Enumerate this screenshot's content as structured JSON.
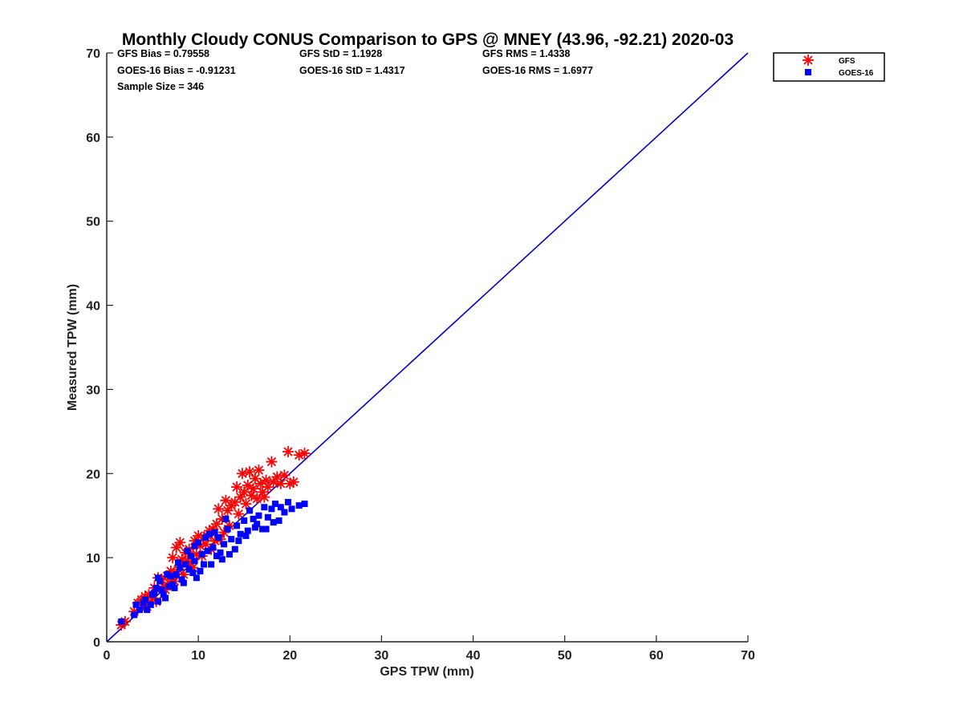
{
  "chart_data": {
    "type": "scatter",
    "title": "Monthly Cloudy CONUS Comparison to GPS @ MNEY (43.96, -92.21) 2020-03",
    "xlabel": "GPS TPW (mm)",
    "ylabel": "Measured TPW (mm)",
    "xlim": [
      0,
      70
    ],
    "ylim": [
      0,
      70
    ],
    "xticks": [
      0,
      10,
      20,
      30,
      40,
      50,
      60,
      70
    ],
    "yticks": [
      0,
      10,
      20,
      30,
      40,
      50,
      60,
      70
    ],
    "grid": false,
    "legend_position": "top-right, outside plot",
    "stats": {
      "gfs_bias": "GFS Bias = 0.79558",
      "gfs_std": "GFS StD = 1.1928",
      "gfs_rms": "GFS RMS = 1.4338",
      "goes_bias": "GOES-16 Bias = -0.91231",
      "goes_std": "GOES-16 StD = 1.4317",
      "goes_rms": "GOES-16 RMS = 1.6977",
      "sample_size": "Sample Size = 346"
    },
    "reference_line": {
      "color": "#0000cc",
      "from": [
        0,
        0
      ],
      "to": [
        70,
        70
      ]
    },
    "series": [
      {
        "name": "GFS",
        "marker": "asterisk",
        "color": "#ff0000",
        "points": [
          [
            1.6,
            2.0
          ],
          [
            2.0,
            2.4
          ],
          [
            3.0,
            3.6
          ],
          [
            3.4,
            4.6
          ],
          [
            3.8,
            5.0
          ],
          [
            4.2,
            5.4
          ],
          [
            4.6,
            5.6
          ],
          [
            5.0,
            5.2
          ],
          [
            5.2,
            6.4
          ],
          [
            5.6,
            7.6
          ],
          [
            6.0,
            7.4
          ],
          [
            6.2,
            6.6
          ],
          [
            6.6,
            7.8
          ],
          [
            7.0,
            8.4
          ],
          [
            7.2,
            10.0
          ],
          [
            7.6,
            11.2
          ],
          [
            8.0,
            11.8
          ],
          [
            8.2,
            9.8
          ],
          [
            8.6,
            10.6
          ],
          [
            9.0,
            11.0
          ],
          [
            9.2,
            9.4
          ],
          [
            9.6,
            12.0
          ],
          [
            10.0,
            12.6
          ],
          [
            10.2,
            11.4
          ],
          [
            10.6,
            12.4
          ],
          [
            11.0,
            12.6
          ],
          [
            11.2,
            13.2
          ],
          [
            11.6,
            13.4
          ],
          [
            12.0,
            14.0
          ],
          [
            12.2,
            15.8
          ],
          [
            12.6,
            14.6
          ],
          [
            13.0,
            16.8
          ],
          [
            13.2,
            15.6
          ],
          [
            13.6,
            16.2
          ],
          [
            14.0,
            16.6
          ],
          [
            14.2,
            18.4
          ],
          [
            14.6,
            17.2
          ],
          [
            14.8,
            20.0
          ],
          [
            15.0,
            17.8
          ],
          [
            15.4,
            18.6
          ],
          [
            15.6,
            20.2
          ],
          [
            15.8,
            17.4
          ],
          [
            16.0,
            18.2
          ],
          [
            16.2,
            19.4
          ],
          [
            16.6,
            20.4
          ],
          [
            16.8,
            18.8
          ],
          [
            17.0,
            17.8
          ],
          [
            17.4,
            19.2
          ],
          [
            17.6,
            18.4
          ],
          [
            18.0,
            21.4
          ],
          [
            18.2,
            19.0
          ],
          [
            18.6,
            19.6
          ],
          [
            19.0,
            18.8
          ],
          [
            19.4,
            19.8
          ],
          [
            19.8,
            22.6
          ],
          [
            20.0,
            18.8
          ],
          [
            20.4,
            19.0
          ],
          [
            21.0,
            22.2
          ],
          [
            21.6,
            22.4
          ],
          [
            4.4,
            4.2
          ],
          [
            5.4,
            4.8
          ],
          [
            6.4,
            6.2
          ],
          [
            7.4,
            7.2
          ],
          [
            8.4,
            8.0
          ],
          [
            9.4,
            8.8
          ],
          [
            10.4,
            10.2
          ],
          [
            11.4,
            11.0
          ],
          [
            12.4,
            12.2
          ],
          [
            13.4,
            13.8
          ],
          [
            14.4,
            15.2
          ],
          [
            15.2,
            16.4
          ],
          [
            16.4,
            17.0
          ],
          [
            17.2,
            17.2
          ],
          [
            12.8,
            13.0
          ],
          [
            11.8,
            12.0
          ],
          [
            10.8,
            11.6
          ],
          [
            9.8,
            10.4
          ],
          [
            8.8,
            9.6
          ],
          [
            7.8,
            8.6
          ],
          [
            6.8,
            7.0
          ]
        ]
      },
      {
        "name": "GOES-16",
        "marker": "square",
        "color": "#0000ff",
        "points": [
          [
            1.6,
            2.4
          ],
          [
            3.0,
            3.2
          ],
          [
            3.2,
            4.4
          ],
          [
            3.6,
            3.8
          ],
          [
            4.0,
            4.6
          ],
          [
            4.4,
            3.8
          ],
          [
            4.8,
            4.4
          ],
          [
            5.0,
            5.6
          ],
          [
            5.4,
            6.4
          ],
          [
            5.6,
            4.8
          ],
          [
            5.8,
            7.2
          ],
          [
            6.2,
            5.6
          ],
          [
            6.4,
            5.2
          ],
          [
            6.8,
            6.6
          ],
          [
            7.0,
            7.8
          ],
          [
            7.2,
            6.8
          ],
          [
            7.6,
            8.0
          ],
          [
            8.0,
            8.8
          ],
          [
            8.2,
            7.4
          ],
          [
            8.6,
            9.2
          ],
          [
            9.0,
            8.6
          ],
          [
            9.2,
            10.2
          ],
          [
            9.6,
            9.6
          ],
          [
            9.8,
            7.6
          ],
          [
            10.0,
            11.8
          ],
          [
            10.4,
            10.4
          ],
          [
            10.6,
            9.2
          ],
          [
            11.0,
            10.8
          ],
          [
            11.2,
            12.8
          ],
          [
            11.6,
            11.2
          ],
          [
            12.0,
            10.2
          ],
          [
            12.2,
            12.4
          ],
          [
            12.6,
            9.8
          ],
          [
            12.8,
            11.6
          ],
          [
            13.2,
            13.4
          ],
          [
            13.6,
            12.2
          ],
          [
            14.0,
            11.0
          ],
          [
            14.2,
            13.8
          ],
          [
            14.6,
            12.8
          ],
          [
            15.0,
            14.4
          ],
          [
            15.4,
            13.2
          ],
          [
            15.6,
            15.6
          ],
          [
            16.0,
            14.6
          ],
          [
            16.2,
            13.6
          ],
          [
            16.6,
            15.0
          ],
          [
            17.0,
            13.4
          ],
          [
            17.2,
            16.0
          ],
          [
            17.6,
            14.8
          ],
          [
            18.0,
            15.8
          ],
          [
            18.4,
            16.4
          ],
          [
            18.8,
            14.4
          ],
          [
            19.0,
            16.0
          ],
          [
            19.4,
            15.4
          ],
          [
            19.8,
            16.6
          ],
          [
            20.2,
            15.8
          ],
          [
            21.0,
            16.2
          ],
          [
            21.6,
            16.4
          ],
          [
            4.2,
            5.0
          ],
          [
            5.2,
            5.8
          ],
          [
            6.0,
            6.2
          ],
          [
            7.4,
            6.4
          ],
          [
            8.4,
            7.0
          ],
          [
            9.4,
            8.2
          ],
          [
            10.2,
            8.4
          ],
          [
            11.4,
            9.2
          ],
          [
            12.4,
            10.6
          ],
          [
            13.4,
            10.4
          ],
          [
            14.4,
            12.0
          ],
          [
            15.2,
            12.6
          ],
          [
            16.4,
            14.0
          ],
          [
            17.4,
            13.4
          ],
          [
            18.2,
            14.2
          ],
          [
            8.8,
            10.8
          ],
          [
            7.8,
            9.4
          ],
          [
            6.6,
            8.0
          ],
          [
            5.6,
            7.6
          ],
          [
            13.0,
            14.6
          ],
          [
            11.8,
            13.0
          ],
          [
            10.8,
            12.4
          ],
          [
            9.6,
            11.4
          ]
        ]
      }
    ]
  }
}
